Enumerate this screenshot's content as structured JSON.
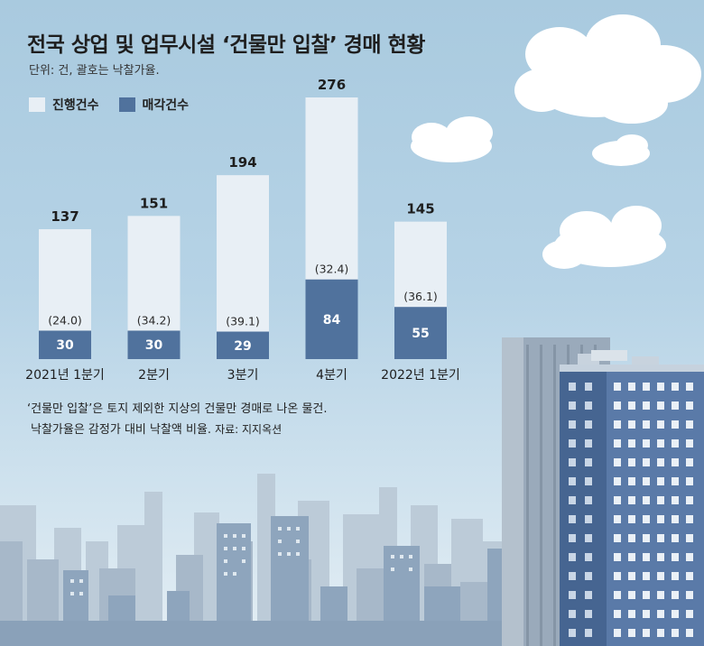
{
  "title": "전국 상업 및 업무시설 ‘건물만 입찰’ 경매 현황",
  "unit_note": "단위: 건, 괄호는 낙찰가율.",
  "legend": [
    {
      "label": "진행건수",
      "color": "#e8eff5"
    },
    {
      "label": "매각건수",
      "color": "#50729d"
    }
  ],
  "chart_data": {
    "type": "bar",
    "categories": [
      "2021년 1분기",
      "2분기",
      "3분기",
      "4분기",
      "2022년 1분기"
    ],
    "series": [
      {
        "name": "진행건수",
        "values": [
          137,
          151,
          194,
          276,
          145
        ]
      },
      {
        "name": "매각건수",
        "values": [
          30,
          30,
          29,
          84,
          55
        ]
      }
    ],
    "rate_labels": [
      "(24.0)",
      "(34.2)",
      "(39.1)",
      "(32.4)",
      "(36.1)"
    ],
    "ylim": [
      0,
      276
    ]
  },
  "footnote": {
    "line1": "‘건물만 입찰’은 토지 제외한 지상의 건물만 경매로 나온 물건.",
    "line2": "낙찰가율은 감정가 대비 낙찰액 비율.",
    "source": "자료: 지지옥션"
  },
  "colors": {
    "sky_top": "#a9cadf",
    "bar_total": "#e8eff5",
    "bar_sold": "#50729d",
    "building": "#5d7aa5",
    "city_far": "#b8c7d4"
  }
}
